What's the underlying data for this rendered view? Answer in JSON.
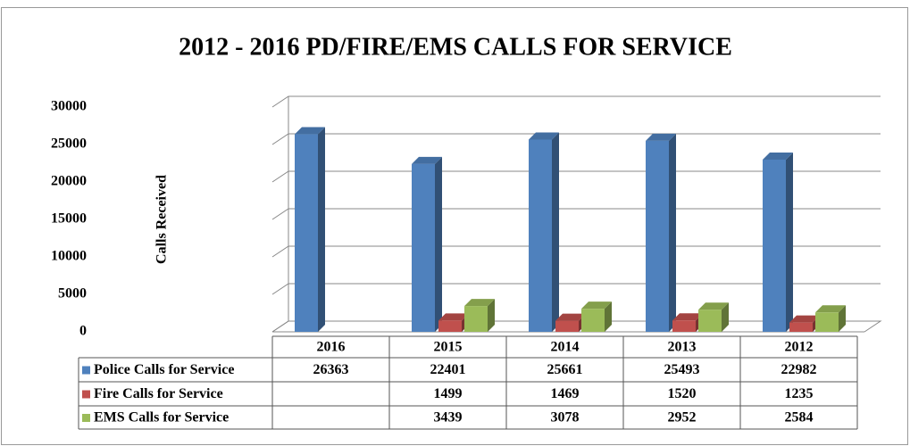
{
  "chart_data": {
    "type": "bar3d",
    "title": "2012 - 2016 PD/FIRE/EMS CALLS FOR SERVICE",
    "y_label": "Calls Received",
    "categories": [
      "2016",
      "2015",
      "2014",
      "2013",
      "2012"
    ],
    "series": [
      {
        "name": "Police Calls for Service",
        "color": "#4f81bd",
        "values": [
          26363,
          22401,
          25661,
          25493,
          22982
        ]
      },
      {
        "name": "Fire Calls for Service",
        "color": "#c0504d",
        "values": [
          null,
          1499,
          1469,
          1520,
          1235
        ]
      },
      {
        "name": "EMS Calls for Service",
        "color": "#9bbb59",
        "values": [
          null,
          3439,
          3078,
          2952,
          2584
        ]
      }
    ],
    "ylim": [
      0,
      30000
    ],
    "yticks": [
      0,
      5000,
      10000,
      15000,
      20000,
      25000,
      30000
    ],
    "grid": true
  }
}
